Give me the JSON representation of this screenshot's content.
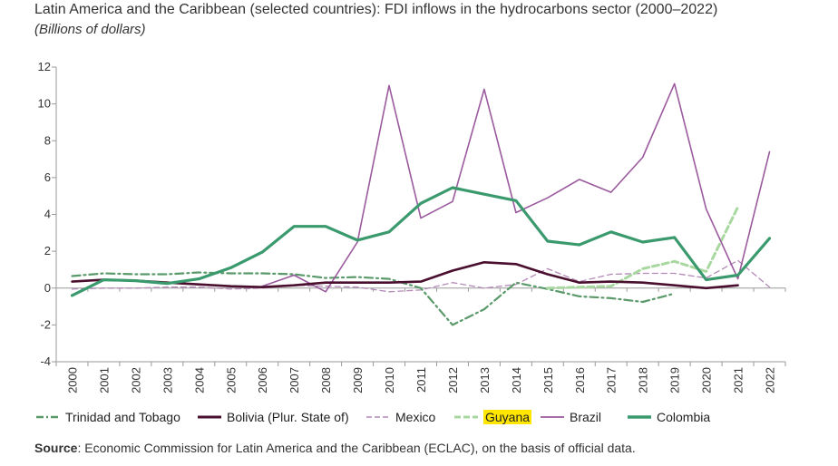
{
  "chart_data": {
    "type": "line",
    "title": "Latin America and the Caribbean (selected countries): FDI inflows in the hydrocarbons sector (2000–2022)",
    "subtitle": "(Billions of dollars)",
    "xlabel": "",
    "ylabel": "",
    "ylim": [
      -4,
      12
    ],
    "yticks": [
      -4,
      -2,
      0,
      2,
      4,
      6,
      8,
      10,
      12
    ],
    "ytick_labels": [
      "-4",
      "-2",
      "0",
      "2",
      "4",
      "6",
      "8",
      "10",
      "12"
    ],
    "categories": [
      "2000",
      "2001",
      "2002",
      "2003",
      "2004",
      "2005",
      "2006",
      "2007",
      "2008",
      "2009",
      "2010",
      "2011",
      "2012",
      "2013",
      "2014",
      "2015",
      "2016",
      "2017",
      "2018",
      "2019",
      "2020",
      "2021",
      "2022"
    ],
    "grid": false,
    "legend_position": "bottom",
    "series": [
      {
        "name": "Trinidad and Tobago",
        "color": "#5a9a6a",
        "style": "dashdot",
        "values": [
          0.65,
          0.8,
          0.75,
          0.75,
          0.85,
          0.8,
          0.8,
          0.75,
          0.55,
          0.6,
          0.5,
          0.0,
          -2.0,
          -1.15,
          0.3,
          -0.05,
          -0.45,
          -0.55,
          -0.75,
          -0.3,
          null,
          null,
          null
        ]
      },
      {
        "name": "Bolivia (Plur. State of)",
        "color": "#4a0f2e",
        "style": "solid",
        "values": [
          0.35,
          0.45,
          0.4,
          0.3,
          0.2,
          0.1,
          0.05,
          0.15,
          0.3,
          0.3,
          0.3,
          0.35,
          0.95,
          1.4,
          1.3,
          0.75,
          0.3,
          0.35,
          0.3,
          0.15,
          0.0,
          0.15,
          null
        ]
      },
      {
        "name": "Mexico",
        "color": "#b48ab8",
        "style": "dashed",
        "values": [
          -0.05,
          0.0,
          0.0,
          0.05,
          0.05,
          -0.05,
          0.0,
          0.15,
          0.1,
          0.05,
          -0.2,
          -0.1,
          0.3,
          0.0,
          0.2,
          1.05,
          0.35,
          0.75,
          0.8,
          0.8,
          0.55,
          1.5,
          0.05
        ]
      },
      {
        "name": "Guyana",
        "color": "#a8d8a0",
        "style": "dashed",
        "values": [
          null,
          null,
          null,
          null,
          null,
          null,
          null,
          null,
          null,
          null,
          null,
          null,
          null,
          null,
          null,
          0.0,
          0.05,
          0.1,
          1.05,
          1.45,
          0.9,
          4.4,
          null
        ]
      },
      {
        "name": "Brazil",
        "color": "#9b5a9e",
        "style": "solid",
        "values": [
          null,
          null,
          null,
          null,
          null,
          null,
          0.1,
          0.7,
          -0.2,
          2.5,
          11.0,
          3.8,
          4.7,
          10.8,
          4.1,
          4.9,
          5.9,
          5.2,
          7.1,
          11.1,
          4.3,
          0.5,
          7.4
        ]
      },
      {
        "name": "Colombia",
        "color": "#3a9a6e",
        "style": "solid-thick",
        "values": [
          -0.4,
          0.45,
          0.4,
          0.25,
          0.5,
          1.1,
          1.95,
          3.35,
          3.35,
          2.6,
          3.05,
          4.6,
          5.45,
          5.1,
          4.75,
          2.55,
          2.35,
          3.05,
          2.5,
          2.75,
          0.45,
          0.7,
          2.7
        ]
      }
    ]
  },
  "legend": {
    "items": [
      {
        "label": "Trinidad and Tobago",
        "highlight": false
      },
      {
        "label": "Bolivia (Plur. State of)",
        "highlight": false
      },
      {
        "label": "Mexico",
        "highlight": false
      },
      {
        "label": "Guyana",
        "highlight": true
      },
      {
        "label": "Brazil",
        "highlight": false
      },
      {
        "label": "Colombia",
        "highlight": false
      }
    ]
  },
  "source": {
    "label": "Source",
    "text": ": Economic Commission for Latin America and the Caribbean (ECLAC), on the basis of official data."
  }
}
